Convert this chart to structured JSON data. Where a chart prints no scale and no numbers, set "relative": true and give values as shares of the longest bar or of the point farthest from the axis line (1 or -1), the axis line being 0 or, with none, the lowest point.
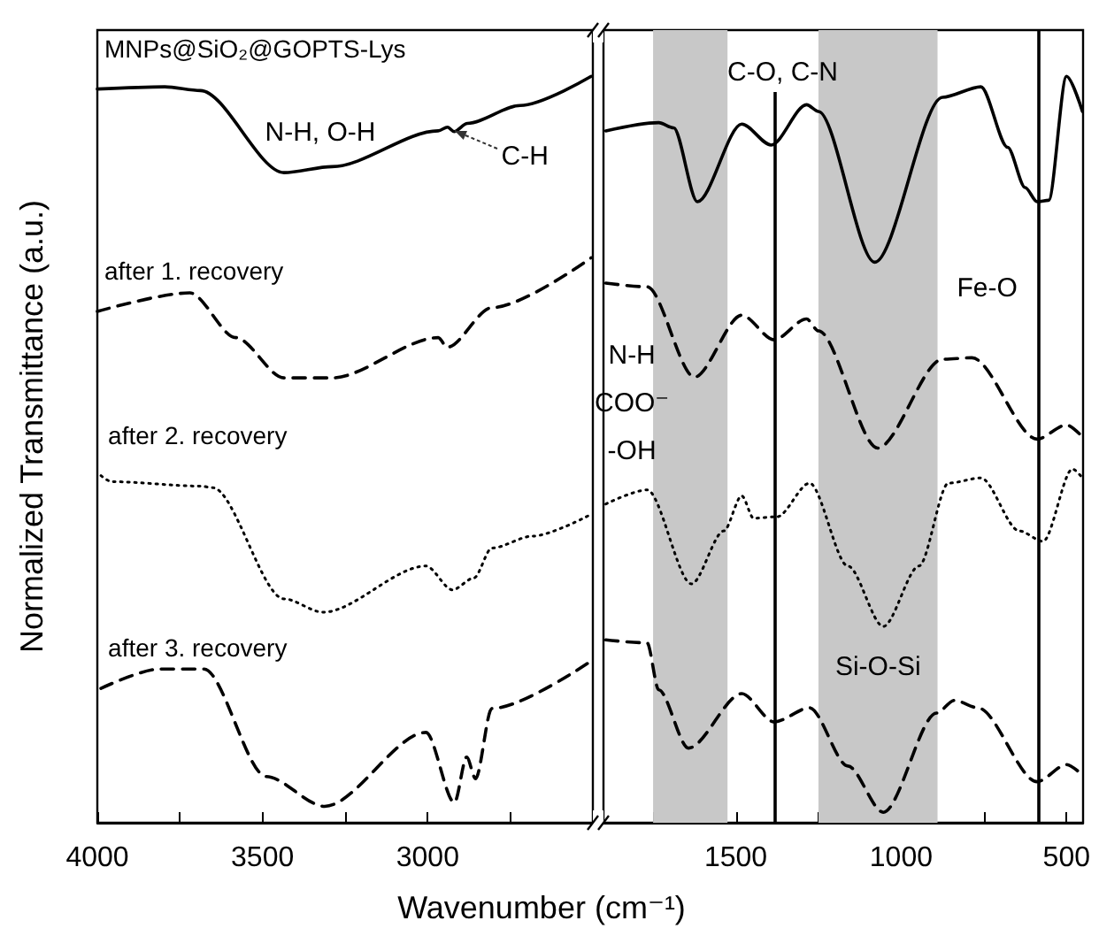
{
  "chart_data": [
    {
      "type": "line",
      "relative": true,
      "xlabel": "Wavenumber (cm⁻¹)",
      "ylabel": "Normalized Transmittance (a.u.)",
      "xlim": [
        4000,
        2500
      ],
      "xticks": [
        4000,
        {
          "value": 3750,
          "label": null
        },
        3500,
        {
          "value": 3250,
          "label": null
        },
        3000,
        {
          "value": 2750,
          "label": null
        }
      ],
      "series": [
        {
          "name": "MNPs@SiO₂@GOPTS-Lys",
          "color": "#000000",
          "line_style": "solid",
          "x": [
            4000,
            3796,
            3688,
            3435,
            3290,
            2968,
            2940,
            2920,
            2880,
            2720,
            2505
          ],
          "values": [
            0.983,
            0.986,
            0.981,
            0.871,
            0.879,
            0.927,
            0.932,
            0.926,
            0.937,
            0.961,
            1.0
          ]
        },
        {
          "name": "after 1. recovery",
          "color": "#000000",
          "line_style": "dashed",
          "x": [
            4000,
            3720,
            3581,
            3435,
            3290,
            2968,
            2941,
            2806,
            2505
          ],
          "values": [
            0.685,
            0.71,
            0.65,
            0.596,
            0.596,
            0.65,
            0.637,
            0.69,
            0.757
          ]
        },
        {
          "name": "after 2. recovery",
          "color": "#000000",
          "line_style": "dotted",
          "x": [
            3989,
            3957,
            3688,
            3651,
            3435,
            3317,
            3005,
            2925,
            2860,
            2806,
            2683,
            2511
          ],
          "values": [
            0.465,
            0.457,
            0.451,
            0.449,
            0.3,
            0.282,
            0.344,
            0.312,
            0.328,
            0.368,
            0.384,
            0.412
          ]
        },
        {
          "name": "after 3. recovery",
          "color": "#000000",
          "line_style": "dashed",
          "x": [
            3989,
            3812,
            3677,
            3489,
            3312,
            3005,
            2919,
            2882,
            2855,
            2806,
            2511
          ],
          "values": [
            0.18,
            0.206,
            0.206,
            0.062,
            0.022,
            0.121,
            0.027,
            0.088,
            0.059,
            0.153,
            0.215
          ]
        }
      ],
      "annotations": [
        "N-H, O-H",
        {
          "text": "C-H",
          "x": 2920,
          "y": 0.926
        }
      ]
    },
    {
      "type": "line",
      "relative": true,
      "xlim": [
        1900,
        450
      ],
      "xticks": [
        {
          "value": 1750,
          "label": null
        },
        1500,
        {
          "value": 1250,
          "label": null
        },
        1000,
        {
          "value": 750,
          "label": null
        },
        500
      ],
      "series": [
        {
          "color": "#000000",
          "line_style": "solid",
          "x": [
            1893,
            1733,
            1688,
            1616,
            1482,
            1393,
            1286,
            1250,
            1080,
            875,
            759,
            678,
            625,
            589,
            554,
            500,
            452
          ],
          "values": [
            0.927,
            0.938,
            0.931,
            0.832,
            0.936,
            0.908,
            0.962,
            0.953,
            0.751,
            0.972,
            0.986,
            0.905,
            0.851,
            0.832,
            0.834,
            1.0,
            0.953
          ]
        },
        {
          "color": "#000000",
          "line_style": "dashed",
          "x": [
            1893,
            1768,
            1625,
            1482,
            1384,
            1286,
            1250,
            1071,
            875,
            786,
            589,
            500,
            452
          ],
          "values": [
            0.723,
            0.718,
            0.597,
            0.68,
            0.647,
            0.675,
            0.659,
            0.502,
            0.621,
            0.623,
            0.514,
            0.533,
            0.517
          ]
        },
        {
          "color": "#000000",
          "line_style": "dotted",
          "x": [
            1893,
            1768,
            1634,
            1536,
            1482,
            1446,
            1375,
            1277,
            1161,
            1054,
            946,
            857,
            759,
            643,
            571,
            482,
            452
          ],
          "values": [
            0.427,
            0.446,
            0.32,
            0.391,
            0.438,
            0.408,
            0.41,
            0.455,
            0.344,
            0.263,
            0.344,
            0.455,
            0.462,
            0.391,
            0.377,
            0.474,
            0.462
          ]
        },
        {
          "color": "#000000",
          "line_style": "dashed",
          "x": [
            1893,
            1768,
            1733,
            1643,
            1482,
            1384,
            1277,
            1161,
            1054,
            893,
            839,
            768,
            589,
            500,
            452
          ],
          "values": [
            0.245,
            0.241,
            0.178,
            0.1,
            0.173,
            0.135,
            0.154,
            0.076,
            0.014,
            0.147,
            0.164,
            0.154,
            0.055,
            0.078,
            0.064
          ]
        }
      ],
      "bands": [
        {
          "axis": "x",
          "from": 1750,
          "to": 1525,
          "color": "#c8c8c8",
          "label": "N-H\nCOO⁻\n-OH"
        },
        {
          "axis": "x",
          "from": 1250,
          "to": 890,
          "color": "#c8c8c8",
          "label": "Si-O-Si"
        }
      ],
      "ref_lines": [
        {
          "axis": "x",
          "value": 1385,
          "color": "#000000",
          "label": "C-O, C-N"
        },
        {
          "axis": "x",
          "value": 585,
          "color": "#000000",
          "label": "Fe-O"
        }
      ]
    }
  ]
}
